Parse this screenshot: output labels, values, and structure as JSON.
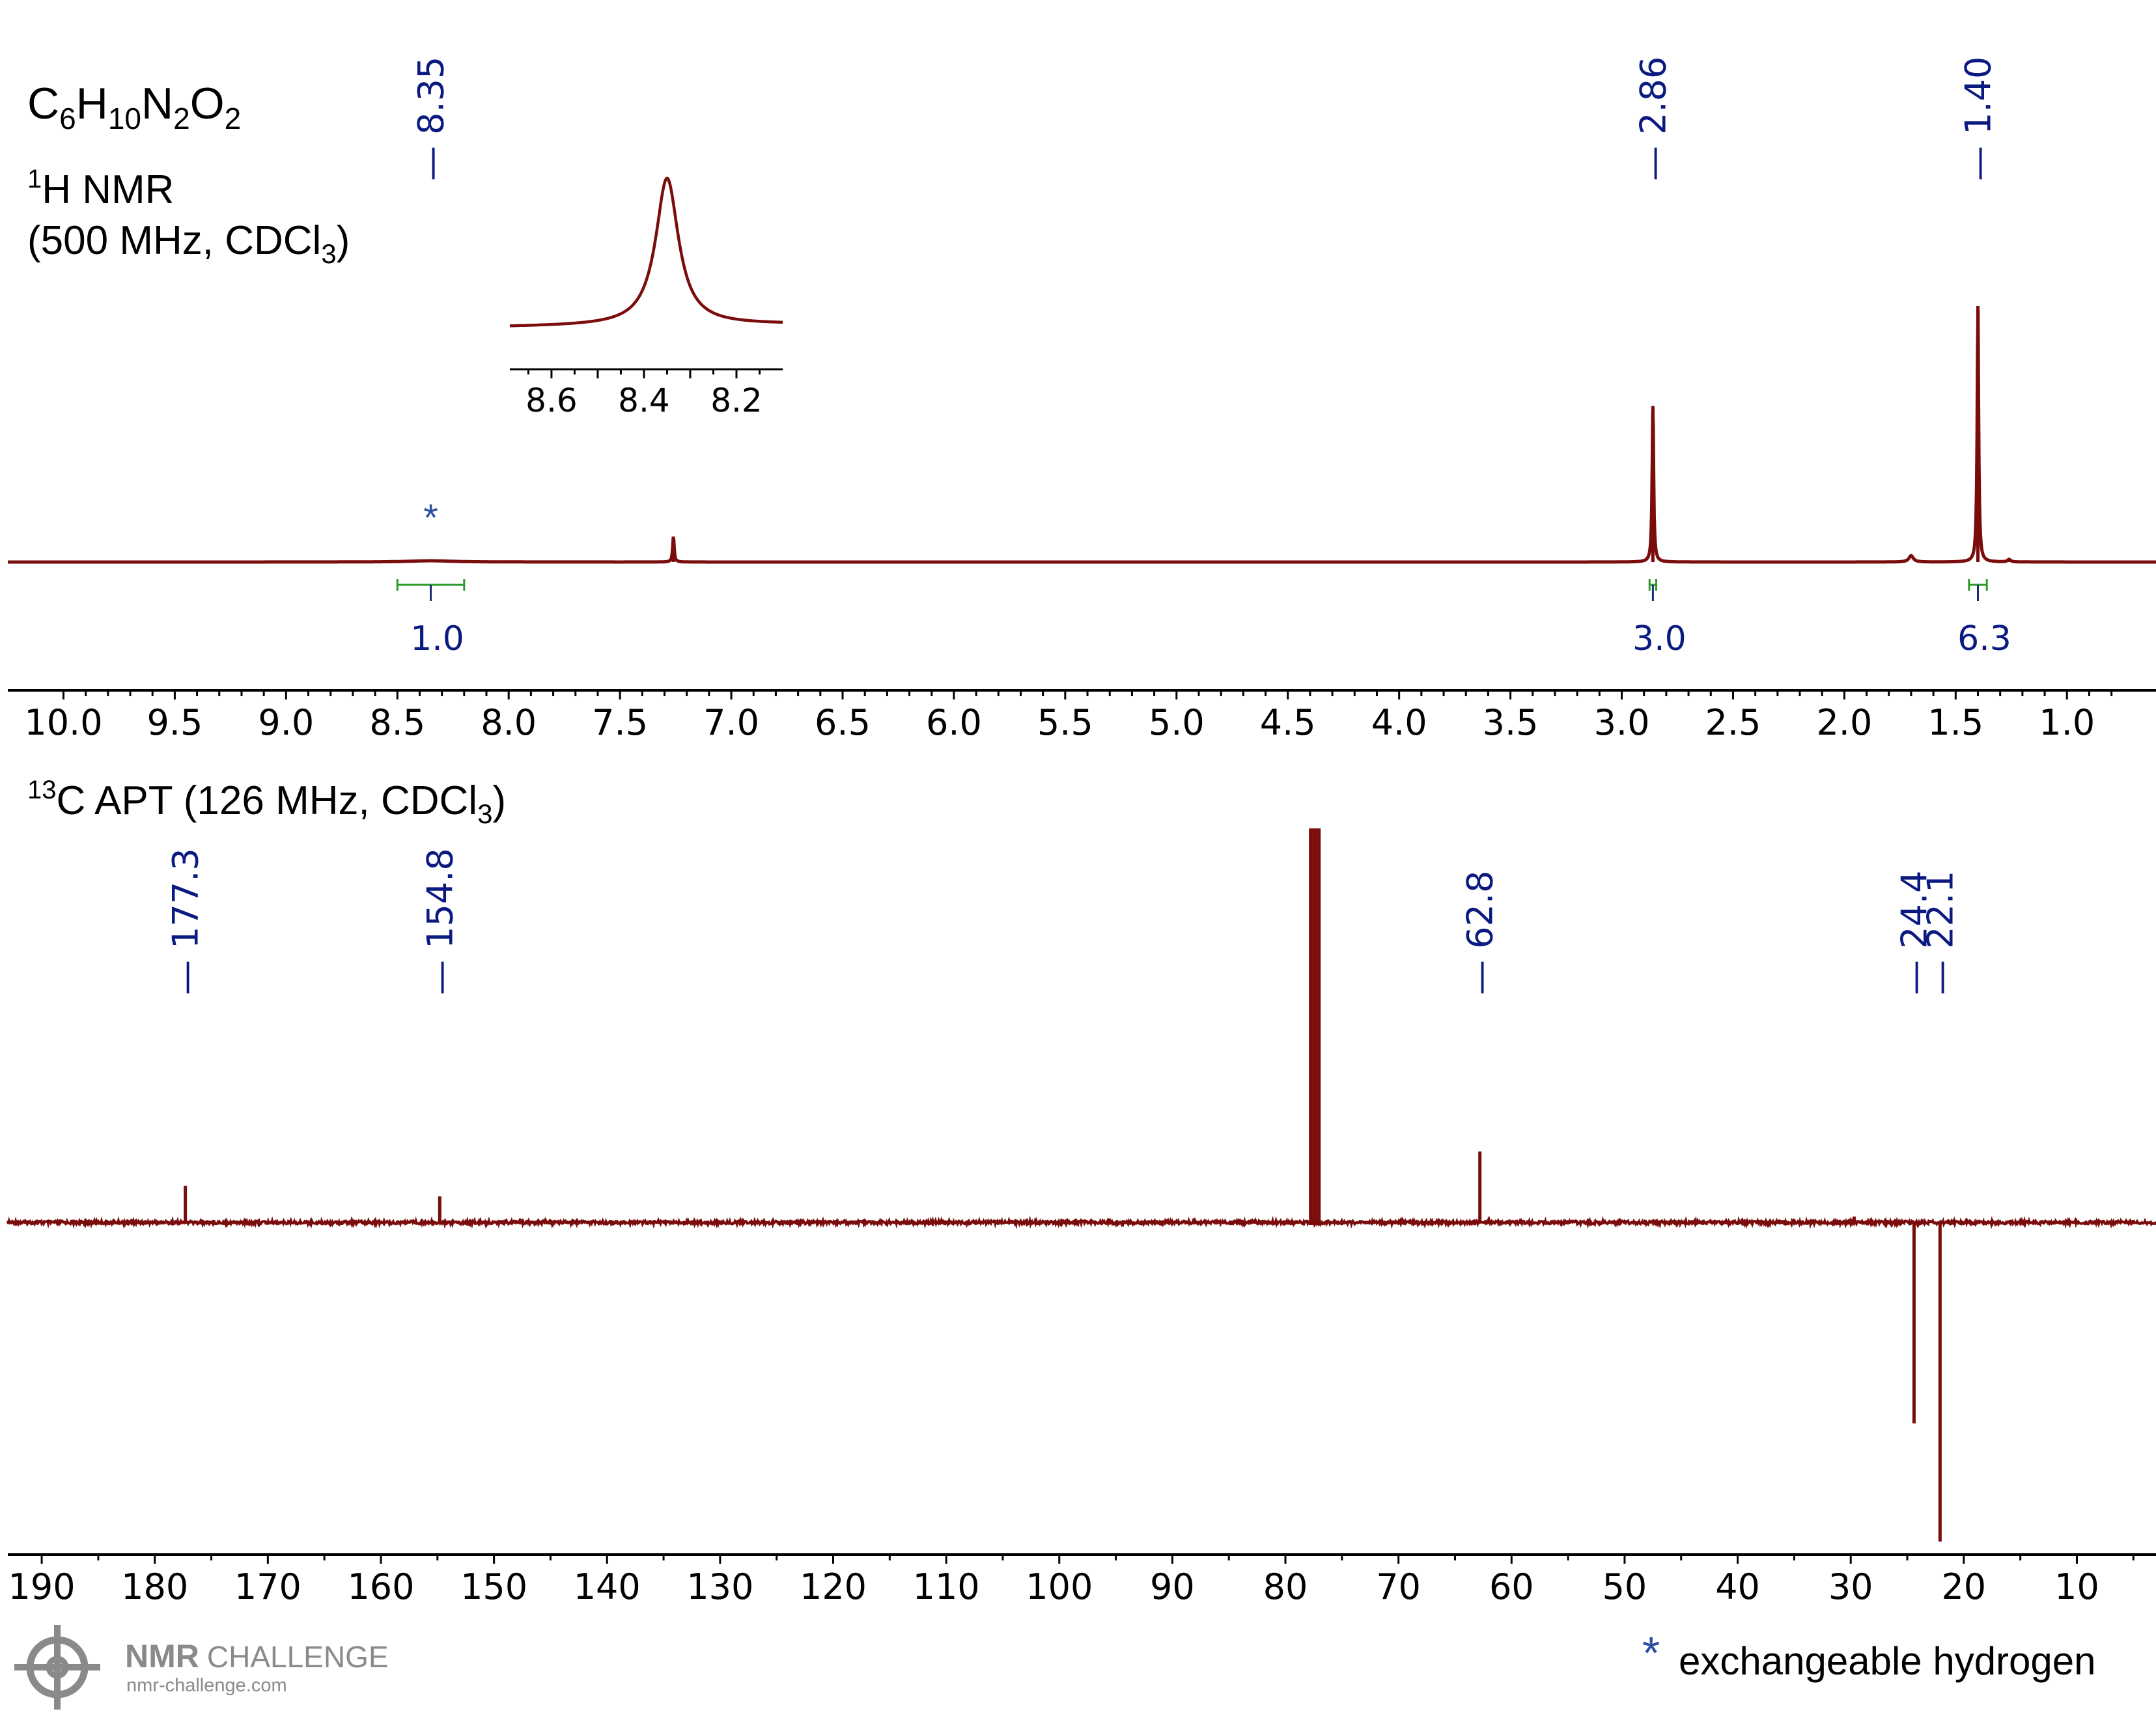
{
  "header": {
    "formula": {
      "parts": [
        "C",
        "6",
        "H",
        "10",
        "N",
        "2",
        "O",
        "2"
      ]
    },
    "h1_title": {
      "sup": "1",
      "text": "H NMR"
    },
    "h1_conditions": {
      "prefix": "(500 MHz, CDCl",
      "sub": "3",
      "suffix": ")"
    },
    "c13_title": {
      "sup": "13",
      "prefix": "C APT (126 MHz, CDCl",
      "sub": "3",
      "suffix": ")"
    }
  },
  "legend": {
    "star": "*",
    "text": "exchangeable hydrogen"
  },
  "branding": {
    "name_bold": "NMR",
    "name_light": "CHALLENGE",
    "url": "nmr-challenge.com"
  },
  "colors": {
    "spectrum": "#7a0c0c",
    "peak_labels": "#0a1a80",
    "integrals": "#2c9a2c",
    "asterisk": "#2a4fa0",
    "axis": "#000000",
    "logo": "#8a8a8a"
  },
  "chart_data": [
    {
      "type": "line",
      "xlabel": "",
      "ylabel": "",
      "x_reversed": true,
      "xlim": [
        10.25,
        0.6
      ],
      "x_ticks": [
        "10.0",
        "9.5",
        "9.0",
        "8.5",
        "8.0",
        "7.5",
        "7.0",
        "6.5",
        "6.0",
        "5.5",
        "5.0",
        "4.5",
        "4.0",
        "3.5",
        "3.0",
        "2.5",
        "2.0",
        "1.5",
        "1.0"
      ],
      "peaks": [
        {
          "shift": 8.35,
          "height": 0.005,
          "width": 0.12,
          "broad": true
        },
        {
          "shift": 7.26,
          "height": 0.1,
          "width": 0.004
        },
        {
          "shift": 2.86,
          "height": 0.61,
          "width": 0.004
        },
        {
          "shift": 1.7,
          "height": 0.025,
          "width": 0.012
        },
        {
          "shift": 1.4,
          "height": 1.0,
          "width": 0.004
        },
        {
          "shift": 1.26,
          "height": 0.01,
          "width": 0.008
        }
      ],
      "peak_labels": [
        "8.35",
        "2.86",
        "1.40"
      ],
      "peak_label_shifts": [
        8.35,
        2.86,
        1.4
      ],
      "integrals": [
        {
          "from": 8.5,
          "to": 8.2,
          "value": "1.0"
        },
        {
          "from": 2.875,
          "to": 2.845,
          "value": "3.0"
        },
        {
          "from": 1.44,
          "to": 1.36,
          "value": "6.3"
        }
      ],
      "annotations": [
        {
          "shift": 8.35,
          "text": "*"
        }
      ],
      "inset": {
        "xlim": [
          8.69,
          8.1
        ],
        "x_ticks": [
          "8.6",
          "8.4",
          "8.2"
        ],
        "peak_shift": 8.35,
        "peak_width": 0.03
      }
    },
    {
      "type": "line",
      "xlabel": "",
      "ylabel": "",
      "x_reversed": true,
      "xlim": [
        193,
        3
      ],
      "x_ticks": [
        "190",
        "180",
        "170",
        "160",
        "150",
        "140",
        "130",
        "120",
        "110",
        "100",
        "90",
        "80",
        "70",
        "60",
        "50",
        "40",
        "30",
        "20",
        "10"
      ],
      "peaks": [
        {
          "shift": 177.3,
          "height": 0.093,
          "phase": "up"
        },
        {
          "shift": 154.8,
          "height": 0.066,
          "phase": "up"
        },
        {
          "shift": 77.4,
          "height": 1.0,
          "phase": "up",
          "solvent": true
        },
        {
          "shift": 62.8,
          "height": 0.18,
          "phase": "up"
        },
        {
          "shift": 29.7,
          "height": 0.015,
          "phase": "up"
        },
        {
          "shift": 24.4,
          "height": -0.51,
          "phase": "down"
        },
        {
          "shift": 22.1,
          "height": -0.81,
          "phase": "down"
        }
      ],
      "peak_labels": [
        "177.3",
        "154.8",
        "62.8",
        "24.4",
        "22.1"
      ],
      "peak_label_shifts": [
        177.3,
        154.8,
        62.8,
        24.4,
        22.1
      ]
    }
  ]
}
